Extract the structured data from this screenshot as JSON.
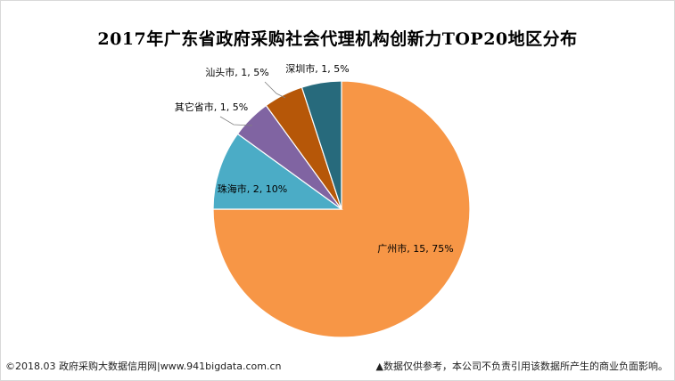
{
  "chart_data": {
    "type": "pie",
    "title": "2017年广东省政府采购社会代理机构创新力TOP20地区分布",
    "start_angle_deg": 0,
    "direction": "clockwise",
    "slices": [
      {
        "name": "广州市",
        "value": 15,
        "percent": "75%",
        "label": "广州市, 15, 75%",
        "color": "#f79646"
      },
      {
        "name": "珠海市",
        "value": 2,
        "percent": "10%",
        "label": "珠海市, 2, 10%",
        "color": "#4bacc6"
      },
      {
        "name": "其它省市",
        "value": 1,
        "percent": "5%",
        "label": "其它省市, 1, 5%",
        "color": "#8064a2"
      },
      {
        "name": "汕头市",
        "value": 1,
        "percent": "5%",
        "label": "汕头市, 1, 5%",
        "color": "#b65708"
      },
      {
        "name": "深圳市",
        "value": 1,
        "percent": "5%",
        "label": "深圳市, 1, 5%",
        "color": "#276a7c"
      }
    ]
  },
  "footer": {
    "left": "©2018.03 政府采购大数据信用网|www.941bigdata.com.cn",
    "right": "▲数据仅供参考，本公司不负责引用该数据所产生的商业负面影响。"
  }
}
